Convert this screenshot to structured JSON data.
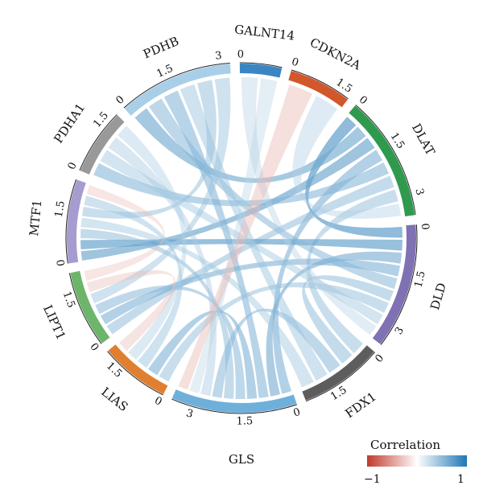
{
  "chart_data": {
    "type": "chord",
    "sectors": [
      {
        "name": "GALNT14",
        "size": 1.2,
        "color": "#3a86c4",
        "ticks": [
          "0"
        ]
      },
      {
        "name": "CDKN2A",
        "size": 1.8,
        "color": "#d2572a",
        "ticks": [
          "0",
          "1.5"
        ]
      },
      {
        "name": "DLAT",
        "size": 3.6,
        "color": "#2f9a4e",
        "ticks": [
          "0",
          "1.5",
          "3"
        ]
      },
      {
        "name": "DLD",
        "size": 3.6,
        "color": "#7f71b3",
        "ticks": [
          "0",
          "1.5",
          "3"
        ]
      },
      {
        "name": "FDX1",
        "size": 2.4,
        "color": "#5d5d5d",
        "ticks": [
          "0",
          "1.5"
        ]
      },
      {
        "name": "GLS",
        "size": 3.6,
        "color": "#6fb0db",
        "ticks": [
          "0",
          "1.5",
          "3"
        ]
      },
      {
        "name": "LIAS",
        "size": 2.0,
        "color": "#e07f30",
        "ticks": [
          "0",
          "1.5"
        ]
      },
      {
        "name": "LIPT1",
        "size": 2.2,
        "color": "#6db56a",
        "ticks": [
          "0",
          "1.5"
        ]
      },
      {
        "name": "MTF1",
        "size": 2.4,
        "color": "#a79ccf",
        "ticks": [
          "0",
          "1.5"
        ]
      },
      {
        "name": "PDHA1",
        "size": 1.9,
        "color": "#999999",
        "ticks": [
          "0",
          "1.5"
        ]
      },
      {
        "name": "PDHB",
        "size": 3.3,
        "color": "#a9cfe8",
        "ticks": [
          "0",
          "1.5",
          "3"
        ]
      }
    ],
    "links": [
      {
        "a": "DLAT",
        "b": "DLD",
        "r": 0.85
      },
      {
        "a": "DLAT",
        "b": "PDHB",
        "r": 0.7
      },
      {
        "a": "DLAT",
        "b": "MTF1",
        "r": 0.75
      },
      {
        "a": "DLAT",
        "b": "GLS",
        "r": 0.6
      },
      {
        "a": "DLAT",
        "b": "PDHA1",
        "r": 0.55
      },
      {
        "a": "DLAT",
        "b": "LIPT1",
        "r": 0.45
      },
      {
        "a": "DLAT",
        "b": "FDX1",
        "r": 0.4
      },
      {
        "a": "DLD",
        "b": "MTF1",
        "r": 0.8
      },
      {
        "a": "DLD",
        "b": "GLS",
        "r": 0.65
      },
      {
        "a": "DLD",
        "b": "LIPT1",
        "r": 0.6
      },
      {
        "a": "DLD",
        "b": "PDHB",
        "r": 0.5
      },
      {
        "a": "DLD",
        "b": "FDX1",
        "r": 0.45
      },
      {
        "a": "DLD",
        "b": "LIAS",
        "r": 0.4
      },
      {
        "a": "GLS",
        "b": "PDHB",
        "r": 0.55
      },
      {
        "a": "GLS",
        "b": "LIAS",
        "r": 0.6
      },
      {
        "a": "GLS",
        "b": "LIPT1",
        "r": 0.5
      },
      {
        "a": "GLS",
        "b": "MTF1",
        "r": 0.45
      },
      {
        "a": "GLS",
        "b": "FDX1",
        "r": 0.5
      },
      {
        "a": "FDX1",
        "b": "PDHB",
        "r": 0.35
      },
      {
        "a": "FDX1",
        "b": "MTF1",
        "r": 0.3
      },
      {
        "a": "PDHB",
        "b": "MTF1",
        "r": 0.4
      },
      {
        "a": "PDHB",
        "b": "LIPT1",
        "r": 0.35
      },
      {
        "a": "PDHA1",
        "b": "DLD",
        "r": 0.3
      },
      {
        "a": "PDHA1",
        "b": "GLS",
        "r": 0.25
      },
      {
        "a": "LIAS",
        "b": "MTF1",
        "r": 0.35
      },
      {
        "a": "LIAS",
        "b": "PDHA1",
        "r": 0.2
      },
      {
        "a": "GALNT14",
        "b": "DLD",
        "r": 0.15
      },
      {
        "a": "GALNT14",
        "b": "GLS",
        "r": 0.12
      },
      {
        "a": "CDKN2A",
        "b": "GLS",
        "r": -0.2
      },
      {
        "a": "CDKN2A",
        "b": "DLAT",
        "r": 0.18
      },
      {
        "a": "LIPT1",
        "b": "LIAS",
        "r": -0.15
      },
      {
        "a": "MTF1",
        "b": "LIPT1",
        "r": -0.12
      }
    ],
    "legend": {
      "title": "Correlation",
      "min_label": "−1",
      "max_label": "1",
      "colors": [
        "#c0392b",
        "#ffffff",
        "#1f77b4"
      ]
    }
  }
}
